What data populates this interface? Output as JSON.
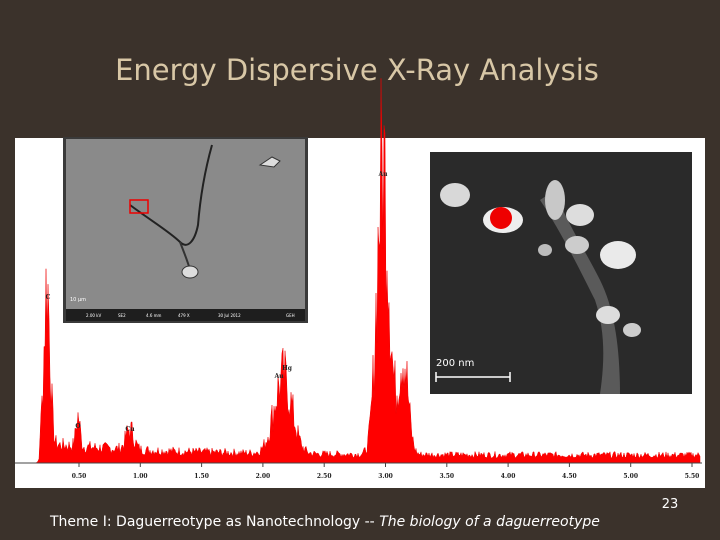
{
  "slide": {
    "title": "Energy Dispersive X-Ray Analysis",
    "spectrum": {
      "axis_labels": [
        "0.50",
        "1.00",
        "1.50",
        "2.00",
        "2.50",
        "3.00",
        "3.50",
        "4.00",
        "4.50",
        "5.00",
        "5.50"
      ],
      "peak_labels": [
        "C",
        "O",
        "Cu",
        "Au",
        "Hg",
        "Au"
      ]
    },
    "sem_image": {
      "scale": "10 µm",
      "info": [
        "2.00 kV",
        "SE2",
        "4.6 mm",
        "479 X",
        "30 Jul 2012",
        "GEH"
      ]
    },
    "closeup_image": {
      "scale": "200 nm"
    },
    "page_number": "23",
    "footer": {
      "text": "Theme I: Daguerreotype as Nanotechnology -- ",
      "italic": "The biology of a daguerreotype"
    }
  }
}
